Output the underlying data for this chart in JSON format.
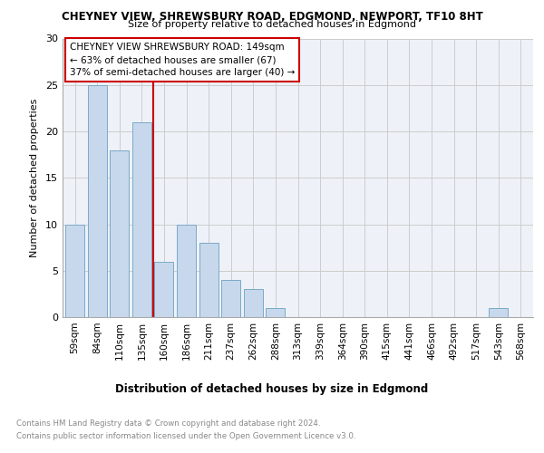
{
  "title": "CHEYNEY VIEW, SHREWSBURY ROAD, EDGMOND, NEWPORT, TF10 8HT",
  "subtitle": "Size of property relative to detached houses in Edgmond",
  "xlabel": "Distribution of detached houses by size in Edgmond",
  "ylabel": "Number of detached properties",
  "categories": [
    "59sqm",
    "84sqm",
    "110sqm",
    "135sqm",
    "160sqm",
    "186sqm",
    "211sqm",
    "237sqm",
    "262sqm",
    "288sqm",
    "313sqm",
    "339sqm",
    "364sqm",
    "390sqm",
    "415sqm",
    "441sqm",
    "466sqm",
    "492sqm",
    "517sqm",
    "543sqm",
    "568sqm"
  ],
  "values": [
    10,
    25,
    18,
    21,
    6,
    10,
    8,
    4,
    3,
    1,
    0,
    0,
    0,
    0,
    0,
    0,
    0,
    0,
    0,
    1,
    0
  ],
  "bar_color": "#c8d8ec",
  "bar_edge_color": "#7aaac8",
  "vline_x": 3.5,
  "vline_color": "#cc0000",
  "annotation_lines": [
    "CHEYNEY VIEW SHREWSBURY ROAD: 149sqm",
    "← 63% of detached houses are smaller (67)",
    "37% of semi-detached houses are larger (40) →"
  ],
  "annotation_box_color": "#ffffff",
  "annotation_box_edge_color": "#cc0000",
  "ylim": [
    0,
    30
  ],
  "yticks": [
    0,
    5,
    10,
    15,
    20,
    25,
    30
  ],
  "footnote_line1": "Contains HM Land Registry data © Crown copyright and database right 2024.",
  "footnote_line2": "Contains public sector information licensed under the Open Government Licence v3.0.",
  "plot_bg_color": "#eef2f8"
}
